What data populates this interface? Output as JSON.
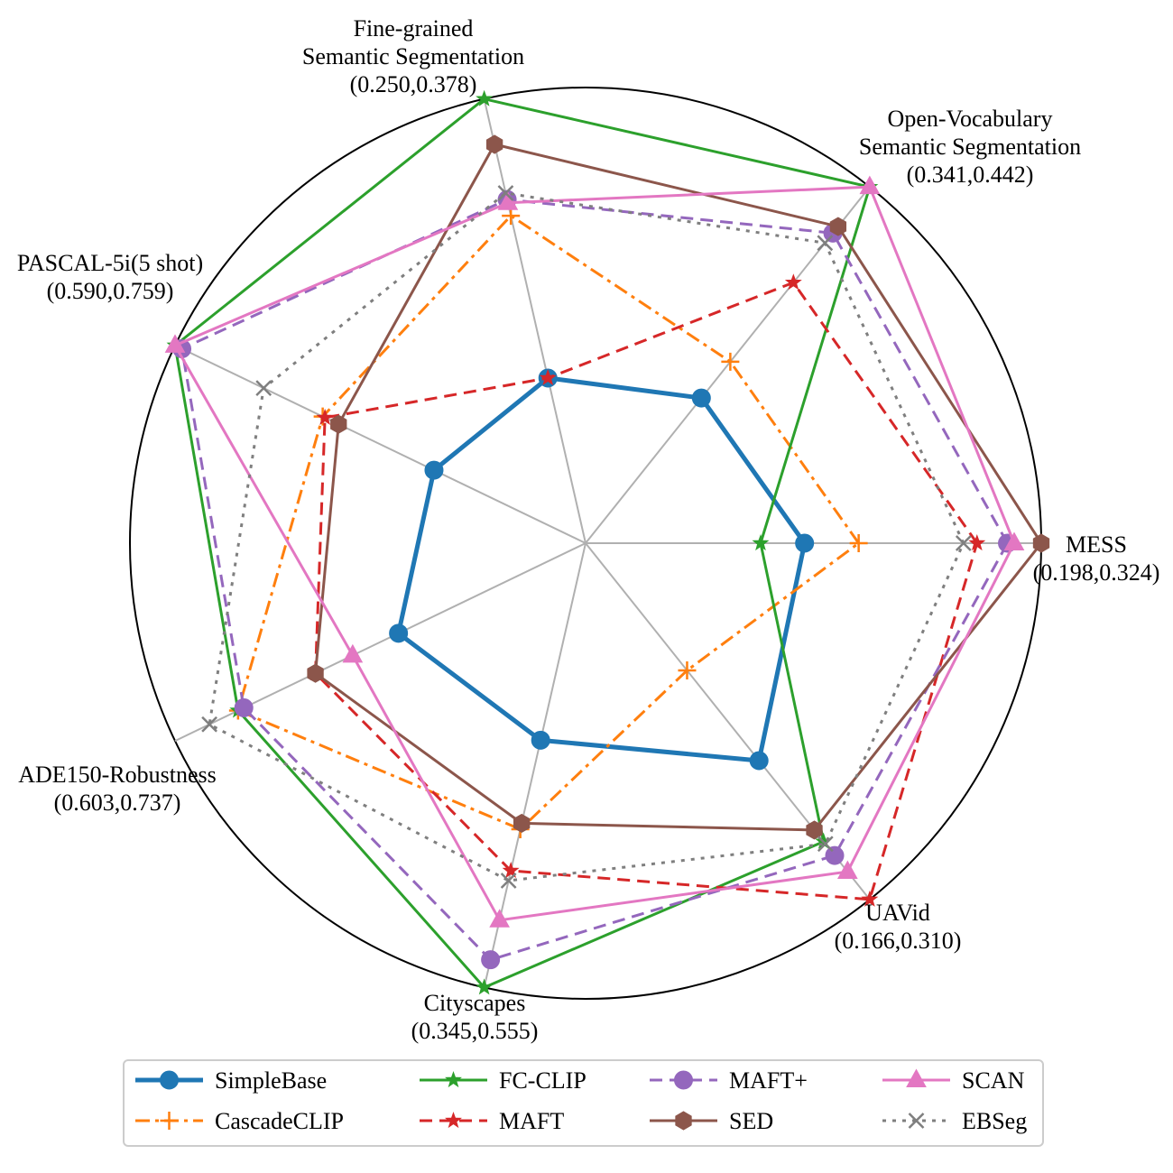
{
  "chart_data": {
    "type": "radar",
    "axes": [
      {
        "name": "MESS",
        "range": "(0.198,0.324)",
        "min": 0.198,
        "max": 0.324
      },
      {
        "name": "Open-Vocabulary Semantic Segmentation",
        "lines": [
          "Open-Vocabulary",
          "Semantic Segmentation"
        ],
        "range": "(0.341,0.442)",
        "min": 0.341,
        "max": 0.442
      },
      {
        "name": "Fine-grained Semantic Segmentation",
        "lines": [
          "Fine-grained",
          "Semantic Segmentation"
        ],
        "range": "(0.250,0.378)",
        "min": 0.25,
        "max": 0.378
      },
      {
        "name": "PASCAL-5i(5 shot)",
        "lines": [
          "PASCAL-5i(5 shot)"
        ],
        "range": "(0.590,0.759)",
        "min": 0.59,
        "max": 0.759
      },
      {
        "name": "ADE150-Robustness",
        "lines": [
          "ADE150-Robustness"
        ],
        "range": "(0.603,0.737)",
        "min": 0.603,
        "max": 0.737
      },
      {
        "name": "Cityscapes",
        "lines": [
          "Cityscapes"
        ],
        "range": "(0.345,0.555)",
        "min": 0.345,
        "max": 0.555
      },
      {
        "name": "UAVid",
        "lines": [
          "UAVid"
        ],
        "range": "(0.166,0.310)",
        "min": 0.166,
        "max": 0.31
      }
    ],
    "series": [
      {
        "name": "SimpleBase",
        "color": "#1f77b4",
        "marker": "circle",
        "dash": "solid",
        "width": 5,
        "values": [
          0.254,
          0.378,
          0.292,
          0.645,
          0.659,
          0.43,
          0.25
        ]
      },
      {
        "name": "CascadeCLIP",
        "color": "#ff7f0e",
        "marker": "plus",
        "dash": "dashdot",
        "width": 3,
        "values": [
          0.27,
          0.389,
          0.342,
          0.694,
          0.715,
          0.475,
          0.211
        ]
      },
      {
        "name": "FC-CLIP",
        "color": "#2ca02c",
        "marker": "star",
        "dash": "solid",
        "width": 3,
        "values": [
          0.241,
          0.442,
          0.378,
          0.759,
          0.715,
          0.555,
          0.285
        ]
      },
      {
        "name": "MAFT",
        "color": "#d62728",
        "marker": "star",
        "dash": "dashed",
        "width": 3,
        "values": [
          0.305,
          0.413,
          0.292,
          0.693,
          0.688,
          0.496,
          0.31
        ]
      },
      {
        "name": "MAFT+",
        "color": "#9467bd",
        "marker": "circle",
        "dash": "dashed",
        "width": 3,
        "values": [
          0.314,
          0.428,
          0.347,
          0.756,
          0.713,
          0.541,
          0.291
        ]
      },
      {
        "name": "SED",
        "color": "#8c564b",
        "marker": "hexagon",
        "dash": "solid",
        "width": 3,
        "values": [
          0.324,
          0.43,
          0.364,
          0.687,
          0.688,
          0.472,
          0.28
        ]
      },
      {
        "name": "SCAN",
        "color": "#e377c2",
        "marker": "triangle",
        "dash": "solid",
        "width": 3,
        "values": [
          0.316,
          0.442,
          0.346,
          0.759,
          0.675,
          0.521,
          0.298
        ]
      },
      {
        "name": "EBSeg",
        "color": "#7f7f7f",
        "marker": "x",
        "dash": "dotted",
        "width": 3,
        "values": [
          0.301,
          0.425,
          0.349,
          0.72,
          0.725,
          0.501,
          0.286
        ]
      }
    ],
    "legend": {
      "placement": "bottom-center",
      "columns": 4
    }
  }
}
